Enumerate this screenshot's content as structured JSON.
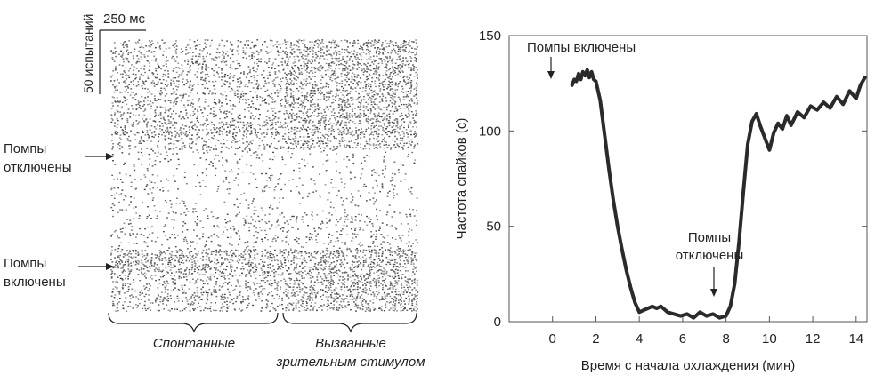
{
  "raster": {
    "scale_time": "250 мс",
    "scale_trials": "50 испытаний",
    "pumps_off": [
      "Помпы",
      "отключены"
    ],
    "pumps_on": [
      "Помпы",
      "включены"
    ],
    "spontaneous": "Спонтанные",
    "evoked": [
      "Вызванные",
      "зрительным стимулом"
    ]
  },
  "chart_data": {
    "type": "line",
    "title": "",
    "xlabel": "Время с начала охлаждения (мин)",
    "ylabel": "Частота спайков (с)",
    "xlim": [
      -2,
      14.5
    ],
    "ylim": [
      0,
      150
    ],
    "xticks": [
      0,
      2,
      4,
      6,
      8,
      10,
      12,
      14
    ],
    "yticks": [
      0,
      50,
      100,
      150
    ],
    "annotations": [
      {
        "text": "Помпы включены",
        "x": 1.0,
        "y": 128
      },
      {
        "text": [
          "Помпы",
          "отключены"
        ],
        "x": 7.5,
        "y": 3
      }
    ],
    "series": [
      {
        "x": [
          0.9,
          1.0,
          1.1,
          1.2,
          1.3,
          1.4,
          1.5,
          1.6,
          1.7,
          1.8,
          1.9,
          2.0,
          2.2,
          2.4,
          2.6,
          2.8,
          3.0,
          3.2,
          3.4,
          3.6,
          3.8,
          4.0,
          4.2,
          4.4,
          4.6,
          4.8,
          5.0,
          5.3,
          5.6,
          5.9,
          6.2,
          6.5,
          6.8,
          7.1,
          7.4,
          7.7,
          8.0,
          8.2,
          8.4,
          8.6,
          8.8,
          9.0,
          9.2,
          9.4,
          9.6,
          9.8,
          10.0,
          10.2,
          10.4,
          10.6,
          10.8,
          11.0,
          11.3,
          11.6,
          11.9,
          12.2,
          12.5,
          12.8,
          13.1,
          13.4,
          13.7,
          14.0,
          14.2,
          14.4
        ],
        "y": [
          124,
          127,
          126,
          130,
          127,
          131,
          129,
          132,
          128,
          131,
          127,
          126,
          116,
          98,
          80,
          64,
          50,
          38,
          27,
          18,
          10,
          5,
          6,
          7,
          8,
          7,
          8,
          5,
          4,
          3,
          4,
          2,
          5,
          3,
          4,
          2,
          3,
          8,
          20,
          42,
          68,
          93,
          105,
          109,
          102,
          96,
          90,
          99,
          104,
          101,
          108,
          103,
          110,
          107,
          113,
          111,
          115,
          112,
          118,
          114,
          121,
          117,
          124,
          128
        ]
      }
    ]
  }
}
